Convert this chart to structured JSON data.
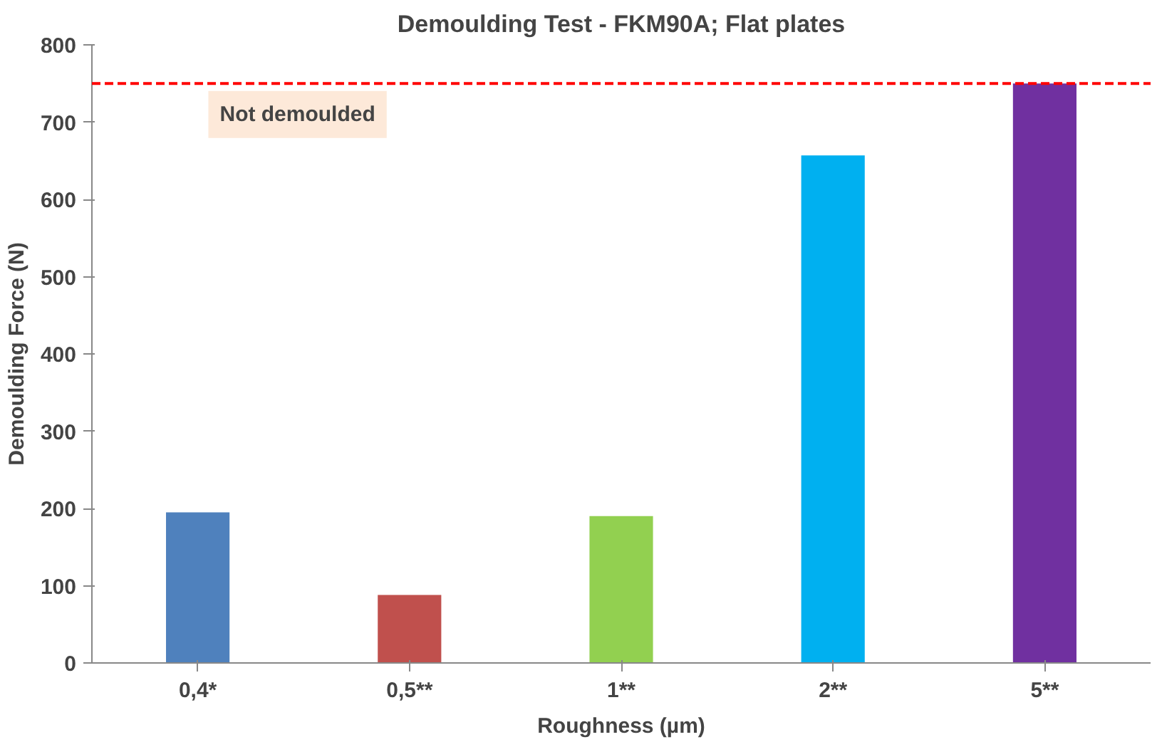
{
  "chart_data": {
    "type": "bar",
    "title": "Demoulding Test - FKM90A; Flat plates",
    "xlabel": "Roughness (µm)",
    "ylabel": "Demoulding Force (N)",
    "categories": [
      "0,4*",
      "0,5**",
      "1**",
      "2**",
      "5**"
    ],
    "values": [
      195,
      88,
      190,
      657,
      750
    ],
    "colors": [
      "#4f81bd",
      "#c0504d",
      "#92d050",
      "#00b0f0",
      "#7030a0"
    ],
    "ylim": [
      0,
      800
    ],
    "yticks": [
      0,
      100,
      200,
      300,
      400,
      500,
      600,
      700,
      800
    ],
    "grid": false,
    "ref_lines": [
      {
        "axis": "y",
        "value": 750,
        "label": "Not demoulded",
        "color": "#ff0000",
        "line_style": "dashed"
      }
    ]
  }
}
